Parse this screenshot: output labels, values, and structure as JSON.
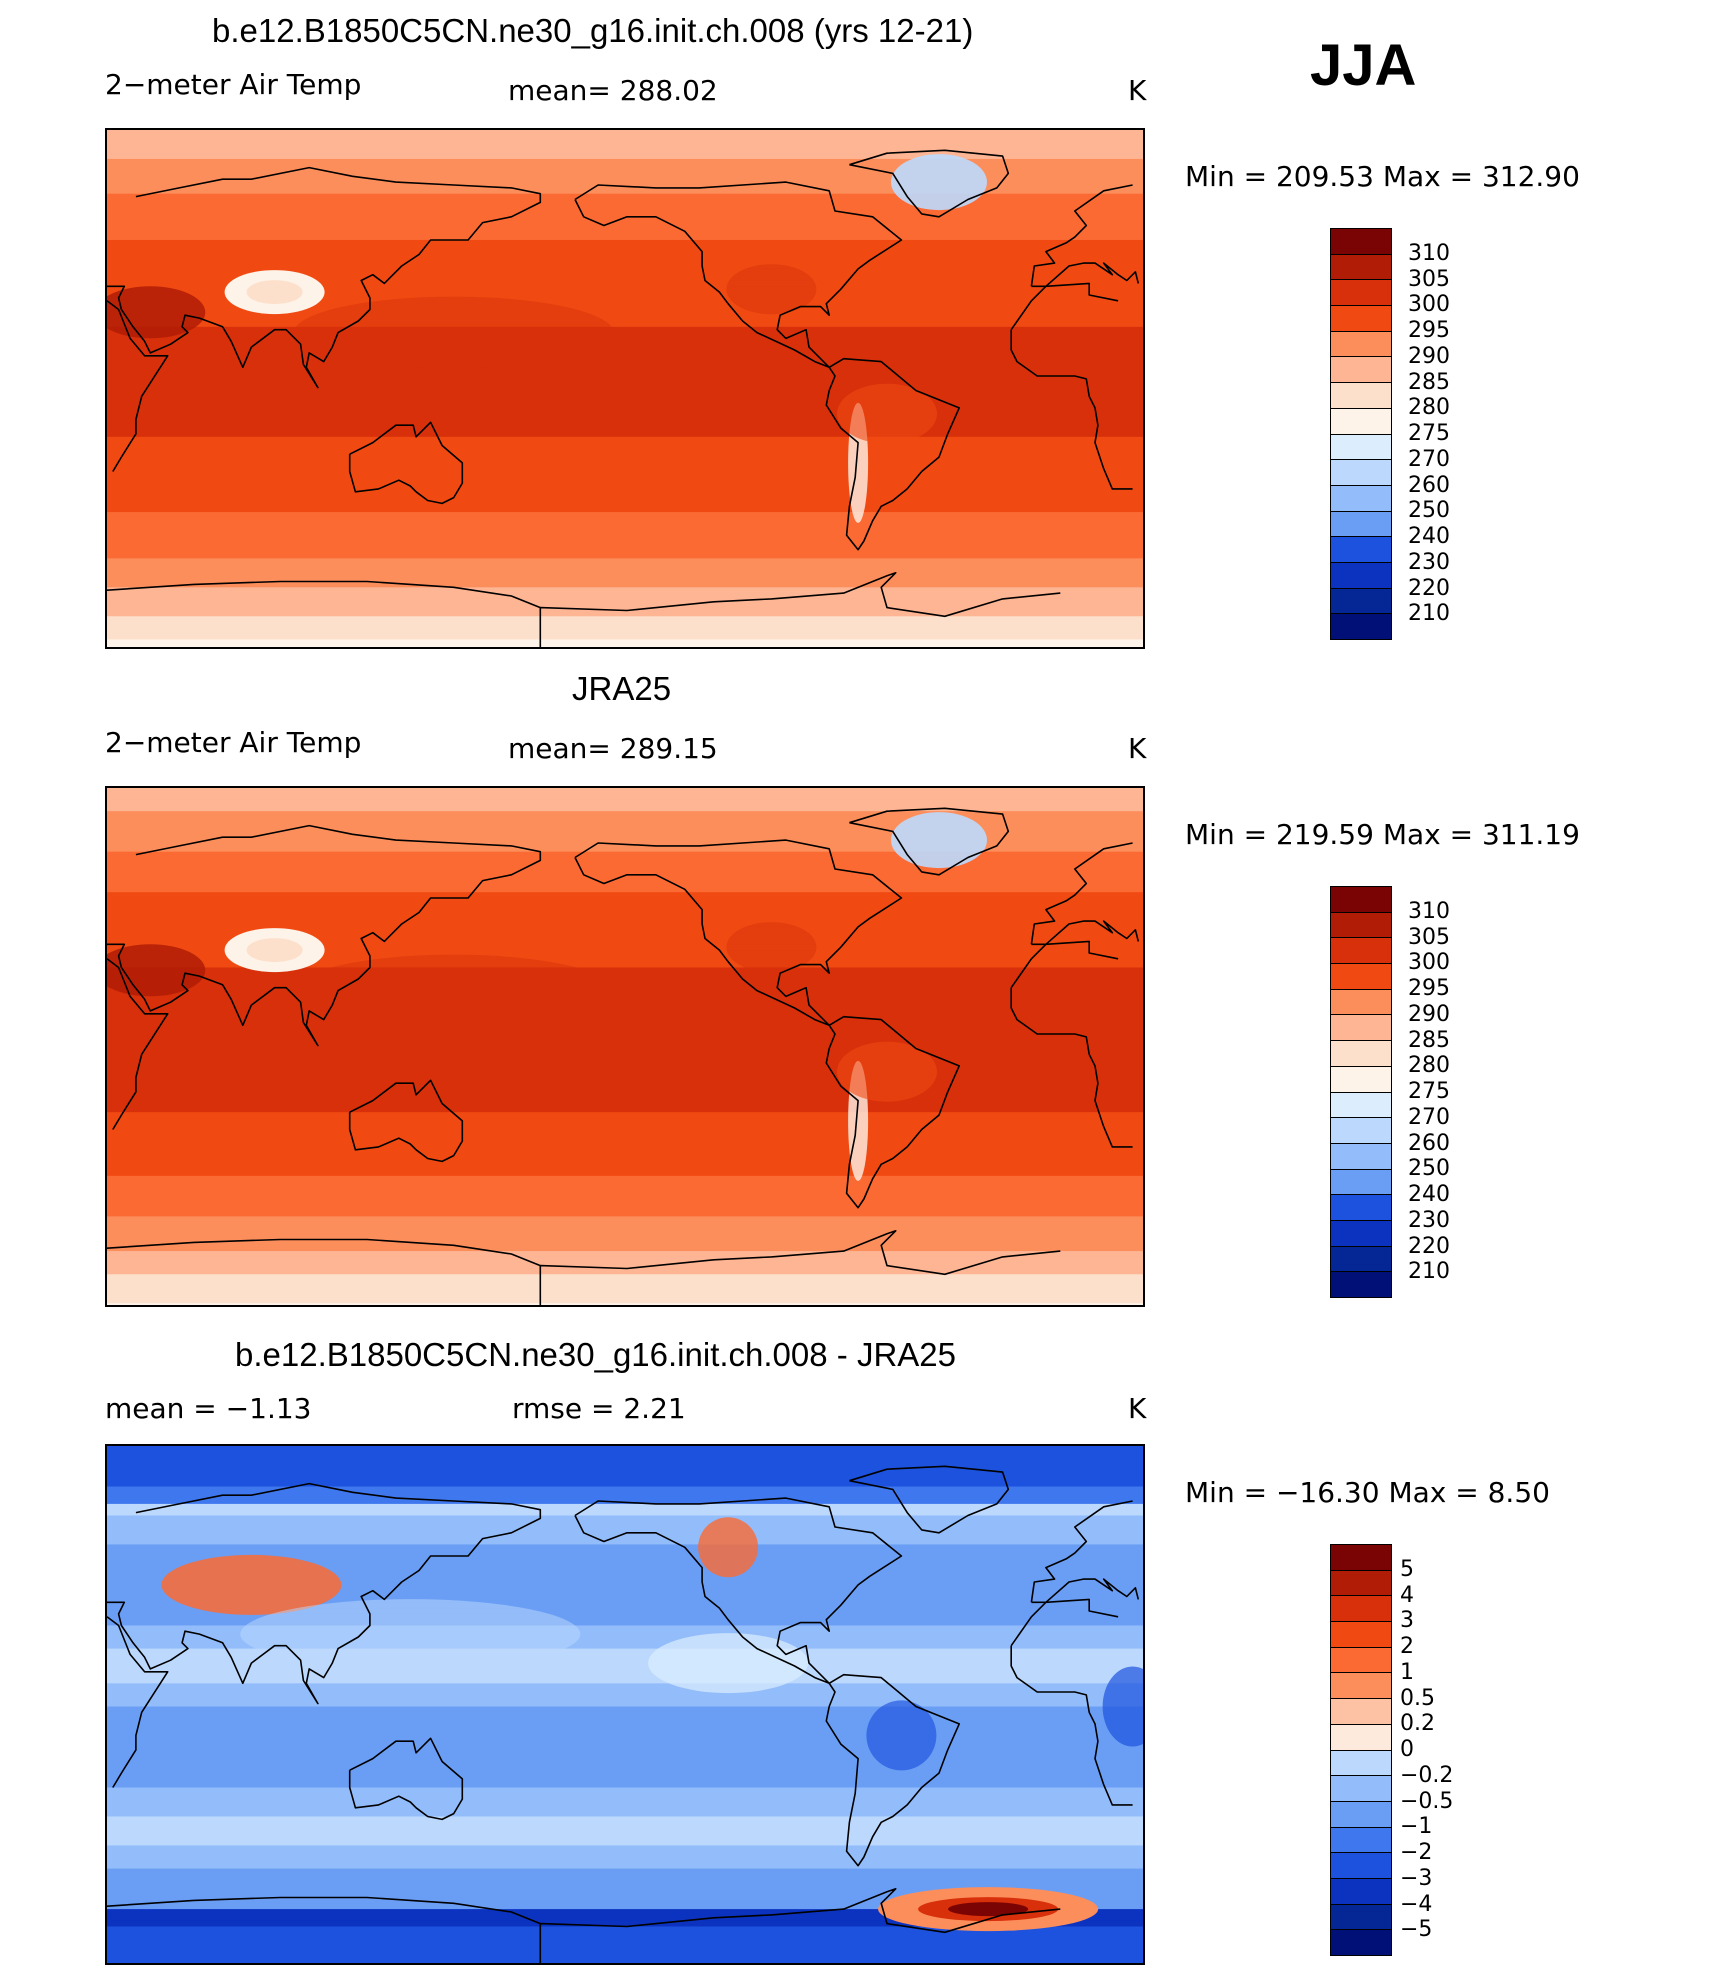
{
  "season": "JJA",
  "panels": [
    {
      "title": "b.e12.B1850C5CN.ne30_g16.init.ch.008 (yrs 12-21)",
      "variable": "2−meter Air Temp",
      "stat": "mean=  288.02",
      "units": "K",
      "minmax": "Min  =  209.53  Max  =  312.90",
      "legend_labels": [
        "310",
        "305",
        "300",
        "295",
        "290",
        "285",
        "280",
        "275",
        "270",
        "260",
        "250",
        "240",
        "230",
        "220",
        "210"
      ]
    },
    {
      "title": "JRA25",
      "variable": "2−meter Air Temp",
      "stat": "mean=  289.15",
      "units": "K",
      "minmax": "Min  =  219.59  Max  =  311.19",
      "legend_labels": [
        "310",
        "305",
        "300",
        "295",
        "290",
        "285",
        "280",
        "275",
        "270",
        "260",
        "250",
        "240",
        "230",
        "220",
        "210"
      ]
    },
    {
      "title": "b.e12.B1850C5CN.ne30_g16.init.ch.008 - JRA25",
      "mean": "mean  =     −1.13",
      "rmse": "rmse  =      2.21",
      "units": "K",
      "minmax": "Min  =  −16.30  Max  =      8.50",
      "legend_labels": [
        "5",
        "4",
        "3",
        "2",
        "1",
        "0.5",
        "0.2",
        "0",
        "−0.2",
        "−0.5",
        "−1",
        "−2",
        "−3",
        "−4",
        "−5"
      ]
    }
  ],
  "colors": {
    "abs_scale": [
      "#7a0403",
      "#b01c06",
      "#d8300a",
      "#f04a12",
      "#fb6a33",
      "#fc8e5c",
      "#fdb594",
      "#fde0cc",
      "#fef3e8",
      "#dceefe",
      "#bcd9fd",
      "#93bdfa",
      "#6a9ef5",
      "#3f78ee",
      "#1d52de",
      "#0b33c0",
      "#052796",
      "#001076"
    ],
    "diff_scale": [
      "#7a0403",
      "#b01c06",
      "#d8300a",
      "#f04a12",
      "#fb6a33",
      "#fc8e5c",
      "#fdc2a4",
      "#fdeadd",
      "#dceefe",
      "#bcd9fd",
      "#93bdfa",
      "#6a9ef5",
      "#3f78ee",
      "#1d52de",
      "#0b33c0",
      "#052796",
      "#001076"
    ],
    "coastline": "#000000"
  }
}
